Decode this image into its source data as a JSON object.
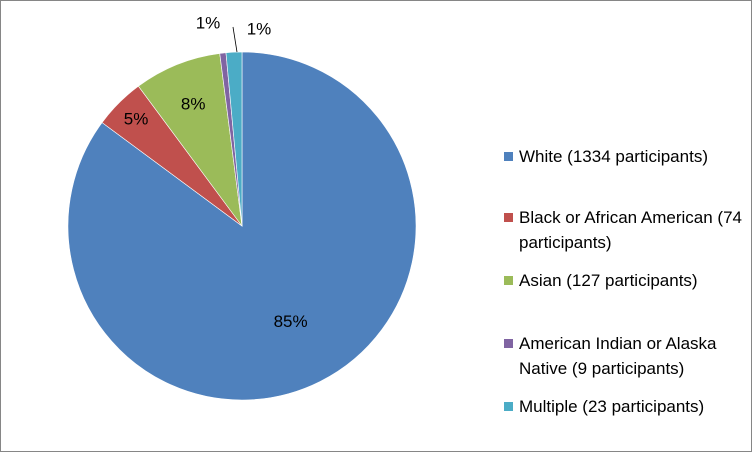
{
  "chart_data": {
    "type": "pie",
    "title": "",
    "start_angle_deg": 0,
    "direction": "clockwise",
    "legend_position": "right",
    "slices": [
      {
        "label": "White (1334 participants)",
        "value": 85,
        "data_label": "85%",
        "color": "#4F81BD"
      },
      {
        "label": "Black or African American (74 participants)",
        "value": 5,
        "data_label": "5%",
        "color": "#C0504D"
      },
      {
        "label": "Asian (127 participants)",
        "value": 8,
        "data_label": "8%",
        "color": "#9BBB59"
      },
      {
        "label": "American Indian or Alaska Native (9 participants)",
        "value": 1,
        "data_label": "1%",
        "color": "#8064A2"
      },
      {
        "label": "Multiple (23 participants)",
        "value": 1,
        "data_label": "1%",
        "color": "#4BACC6"
      }
    ],
    "participants": [
      1334,
      74,
      127,
      9,
      23
    ]
  }
}
